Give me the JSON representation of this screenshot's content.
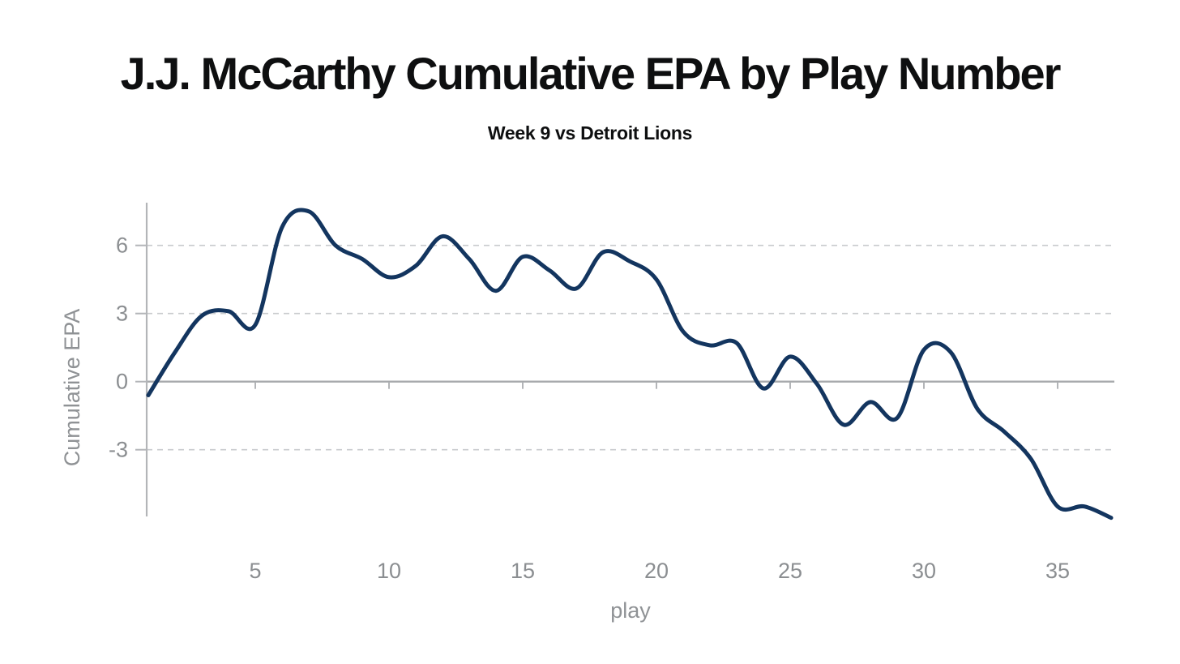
{
  "page": {
    "background_color": "#ffffff"
  },
  "header": {
    "title": "J.J. McCarthy Cumulative EPA by Play Number",
    "subtitle": "Week 9 vs Detroit Lions"
  },
  "chart_data": {
    "type": "line",
    "title": "J.J. McCarthy Cumulative EPA by Play Number",
    "subtitle": "Week 9 vs Detroit Lions",
    "xlabel": "play",
    "ylabel": "Cumulative EPA",
    "x": [
      1,
      2,
      3,
      4,
      5,
      6,
      7,
      8,
      9,
      10,
      11,
      12,
      13,
      14,
      15,
      16,
      17,
      18,
      19,
      20,
      21,
      22,
      23,
      24,
      25,
      26,
      27,
      28,
      29,
      30,
      31,
      32,
      33,
      34,
      35,
      36,
      37
    ],
    "y": [
      -0.6,
      1.3,
      2.9,
      3.1,
      2.5,
      6.8,
      7.5,
      6.0,
      5.4,
      4.6,
      5.1,
      6.4,
      5.4,
      4.0,
      5.5,
      4.9,
      4.1,
      5.7,
      5.3,
      4.5,
      2.2,
      1.6,
      1.7,
      -0.3,
      1.1,
      -0.1,
      -1.9,
      -0.9,
      -1.6,
      1.4,
      1.3,
      -1.2,
      -2.2,
      -3.4,
      -5.5,
      -5.5,
      -6.0
    ],
    "series": [
      {
        "name": "cumulative_epa",
        "label": "Cumulative EPA"
      }
    ],
    "x_ticks": [
      5,
      10,
      15,
      20,
      25,
      30,
      35
    ],
    "y_ticks": [
      6,
      3,
      0,
      -3
    ],
    "xlim": [
      1,
      37
    ],
    "ylim": [
      -5.9,
      7.9
    ],
    "grid": "horizontal-dashed",
    "zero_line": true,
    "legend": "none",
    "smoothing": "spline"
  },
  "style": {
    "line_color": "#13355F",
    "grid_color": "#c9cbce",
    "axis_color": "#b3b5b8",
    "zero_line_color": "#a7a9ac",
    "tick_label_color": "#8b8e91",
    "axis_title_color": "#8f9295",
    "title_color": "#0e0f10"
  }
}
